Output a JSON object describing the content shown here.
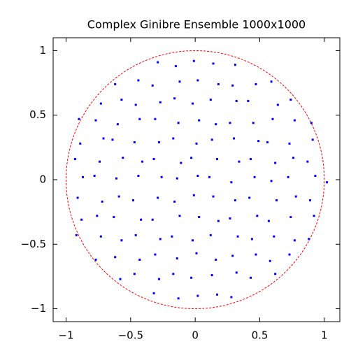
{
  "chart_data": {
    "type": "scatter",
    "title": "Complex Ginibre Ensemble 1000x1000",
    "color": "#0000ff",
    "x": [
      -0.92,
      -0.88,
      -0.91,
      -0.87,
      -0.93,
      -0.89,
      -0.9,
      -0.77,
      -0.73,
      -0.76,
      -0.72,
      -0.78,
      -0.74,
      -0.71,
      -0.77,
      -0.73,
      -0.58,
      -0.62,
      -0.57,
      -0.63,
      -0.59,
      -0.61,
      -0.56,
      -0.64,
      -0.6,
      -0.57,
      -0.62,
      -0.47,
      -0.43,
      -0.46,
      -0.42,
      -0.48,
      -0.44,
      -0.41,
      -0.47,
      -0.43,
      -0.46,
      -0.44,
      -0.32,
      -0.28,
      -0.31,
      -0.27,
      -0.33,
      -0.29,
      -0.26,
      -0.32,
      -0.28,
      -0.31,
      -0.27,
      -0.33,
      -0.29,
      -0.13,
      -0.17,
      -0.14,
      -0.18,
      -0.12,
      -0.16,
      -0.14,
      -0.11,
      -0.17,
      -0.13,
      -0.16,
      -0.12,
      -0.15,
      0.02,
      -0.03,
      0.01,
      -0.02,
      0.03,
      -0.01,
      0.02,
      -0.03,
      0.01,
      0.03,
      -0.02,
      0.02,
      -0.01,
      0.17,
      0.13,
      0.16,
      0.12,
      0.18,
      0.14,
      0.11,
      0.17,
      0.13,
      0.16,
      0.12,
      0.18,
      0.14,
      0.28,
      0.32,
      0.29,
      0.33,
      0.27,
      0.31,
      0.28,
      0.34,
      0.3,
      0.27,
      0.32,
      0.29,
      0.31,
      0.43,
      0.47,
      0.44,
      0.48,
      0.42,
      0.46,
      0.43,
      0.49,
      0.45,
      0.41,
      0.47,
      0.62,
      0.58,
      0.61,
      0.57,
      0.63,
      0.59,
      0.62,
      0.56,
      0.6,
      0.64,
      0.59,
      0.73,
      0.77,
      0.74,
      0.78,
      0.72,
      0.76,
      0.73,
      0.77,
      0.74,
      0.88,
      0.92,
      0.89,
      0.93,
      0.87,
      0.91,
      0.9,
      1.02
    ],
    "values": [
      -0.43,
      -0.31,
      -0.14,
      0.02,
      0.16,
      0.28,
      0.47,
      -0.62,
      -0.44,
      -0.28,
      -0.17,
      0.03,
      0.14,
      0.32,
      0.46,
      0.59,
      -0.77,
      -0.6,
      -0.47,
      -0.29,
      -0.13,
      0.01,
      0.17,
      0.31,
      0.43,
      0.62,
      0.74,
      -0.73,
      -0.62,
      -0.43,
      -0.31,
      -0.16,
      0.03,
      0.14,
      0.29,
      0.47,
      0.58,
      0.77,
      -0.88,
      -0.77,
      -0.58,
      -0.46,
      -0.31,
      -0.14,
      0.02,
      0.16,
      0.29,
      0.47,
      0.6,
      0.73,
      0.91,
      -0.92,
      -0.73,
      -0.61,
      -0.44,
      -0.28,
      -0.17,
      0.01,
      0.13,
      0.32,
      0.44,
      0.63,
      0.76,
      0.88,
      -0.9,
      -0.76,
      -0.57,
      -0.47,
      -0.29,
      -0.12,
      0.03,
      0.17,
      0.28,
      0.46,
      0.59,
      0.77,
      0.92,
      -0.89,
      -0.74,
      -0.62,
      -0.43,
      -0.32,
      -0.13,
      0.02,
      0.16,
      0.31,
      0.43,
      0.62,
      0.74,
      0.9,
      -0.91,
      -0.72,
      -0.59,
      -0.44,
      -0.3,
      -0.16,
      -0.02,
      0.14,
      0.32,
      0.44,
      0.61,
      0.73,
      0.89,
      -0.76,
      -0.58,
      -0.46,
      -0.28,
      -0.14,
      0.02,
      0.16,
      0.3,
      0.44,
      0.61,
      0.74,
      -0.73,
      -0.63,
      -0.44,
      -0.32,
      -0.16,
      -0.01,
      0.13,
      0.29,
      0.47,
      0.58,
      0.76,
      -0.58,
      -0.47,
      -0.29,
      -0.13,
      0.02,
      0.17,
      0.28,
      0.46,
      0.62,
      -0.46,
      -0.28,
      -0.16,
      0.03,
      0.14,
      0.31,
      0.44,
      -0.02
    ],
    "reference_circle": {
      "radius": 1,
      "color": "#ff0000"
    },
    "xlim": [
      -1.1,
      1.12
    ],
    "ylim": [
      -1.1,
      1.1
    ],
    "xticks": [
      {
        "value": -1,
        "label": "−1"
      },
      {
        "value": -0.5,
        "label": "−0.5"
      },
      0,
      0.5,
      1
    ],
    "yticks": [
      {
        "value": -1,
        "label": "−1"
      },
      {
        "value": -0.5,
        "label": "−0.5"
      },
      0,
      0.5,
      1
    ]
  }
}
